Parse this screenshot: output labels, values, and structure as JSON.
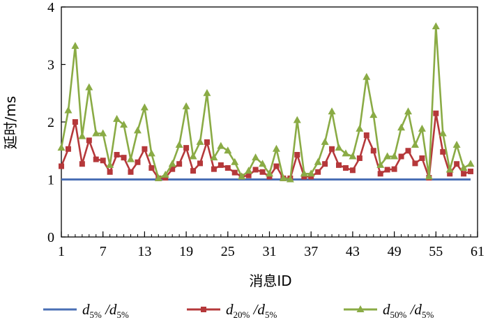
{
  "chart_data": {
    "type": "line",
    "xlabel": "消息ID",
    "ylabel": "延时/ms",
    "xlim": [
      1,
      61
    ],
    "ylim": [
      0,
      4
    ],
    "xticks": [
      1,
      7,
      13,
      19,
      25,
      31,
      37,
      43,
      49,
      55,
      61
    ],
    "yticks": [
      0,
      1,
      2,
      3,
      4
    ],
    "grid": false,
    "legend_position": "bottom",
    "x": [
      1,
      2,
      3,
      4,
      5,
      6,
      7,
      8,
      9,
      10,
      11,
      12,
      13,
      14,
      15,
      16,
      17,
      18,
      19,
      20,
      21,
      22,
      23,
      24,
      25,
      26,
      27,
      28,
      29,
      30,
      31,
      32,
      33,
      34,
      35,
      36,
      37,
      38,
      39,
      40,
      41,
      42,
      43,
      44,
      45,
      46,
      47,
      48,
      49,
      50,
      51,
      52,
      53,
      54,
      55,
      56,
      57,
      58,
      59,
      60
    ],
    "series": [
      {
        "name": "d5%/d5%",
        "legend": {
          "base": "d",
          "sub1": "5%",
          "mid": " /d",
          "sub2": "5%"
        },
        "color": "#4a6fb5",
        "marker": "none",
        "values": [
          1,
          1,
          1,
          1,
          1,
          1,
          1,
          1,
          1,
          1,
          1,
          1,
          1,
          1,
          1,
          1,
          1,
          1,
          1,
          1,
          1,
          1,
          1,
          1,
          1,
          1,
          1,
          1,
          1,
          1,
          1,
          1,
          1,
          1,
          1,
          1,
          1,
          1,
          1,
          1,
          1,
          1,
          1,
          1,
          1,
          1,
          1,
          1,
          1,
          1,
          1,
          1,
          1,
          1,
          1,
          1,
          1,
          1,
          1,
          1
        ]
      },
      {
        "name": "d20%/d5%",
        "legend": {
          "base": "d",
          "sub1": "20%",
          "mid": " /d",
          "sub2": "5%"
        },
        "color": "#b5383a",
        "marker": "square",
        "values": [
          1.23,
          1.53,
          2.0,
          1.27,
          1.68,
          1.35,
          1.33,
          1.13,
          1.43,
          1.38,
          1.13,
          1.3,
          1.53,
          1.2,
          1.02,
          1.03,
          1.18,
          1.27,
          1.55,
          1.15,
          1.28,
          1.65,
          1.18,
          1.25,
          1.2,
          1.12,
          1.05,
          1.07,
          1.17,
          1.13,
          1.05,
          1.23,
          1.02,
          1.02,
          1.43,
          1.05,
          1.05,
          1.13,
          1.27,
          1.53,
          1.25,
          1.2,
          1.16,
          1.37,
          1.77,
          1.5,
          1.1,
          1.17,
          1.18,
          1.4,
          1.5,
          1.28,
          1.37,
          1.03,
          2.15,
          1.48,
          1.1,
          1.27,
          1.1,
          1.14
        ]
      },
      {
        "name": "d50%/d5%",
        "legend": {
          "base": "d",
          "sub1": "50%",
          "mid": " /d",
          "sub2": "5%"
        },
        "color": "#8aab45",
        "marker": "triangle",
        "values": [
          1.55,
          2.2,
          3.32,
          1.75,
          2.6,
          1.8,
          1.8,
          1.25,
          2.05,
          1.95,
          1.35,
          1.85,
          2.25,
          1.45,
          1.02,
          1.08,
          1.27,
          1.6,
          2.27,
          1.4,
          1.65,
          2.5,
          1.38,
          1.58,
          1.5,
          1.3,
          1.05,
          1.15,
          1.38,
          1.27,
          1.1,
          1.53,
          1.02,
          1.0,
          2.03,
          1.1,
          1.1,
          1.3,
          1.65,
          2.18,
          1.55,
          1.45,
          1.4,
          1.88,
          2.78,
          2.12,
          1.25,
          1.4,
          1.4,
          1.9,
          2.18,
          1.6,
          1.88,
          1.05,
          3.66,
          1.8,
          1.17,
          1.6,
          1.2,
          1.27
        ]
      }
    ]
  }
}
